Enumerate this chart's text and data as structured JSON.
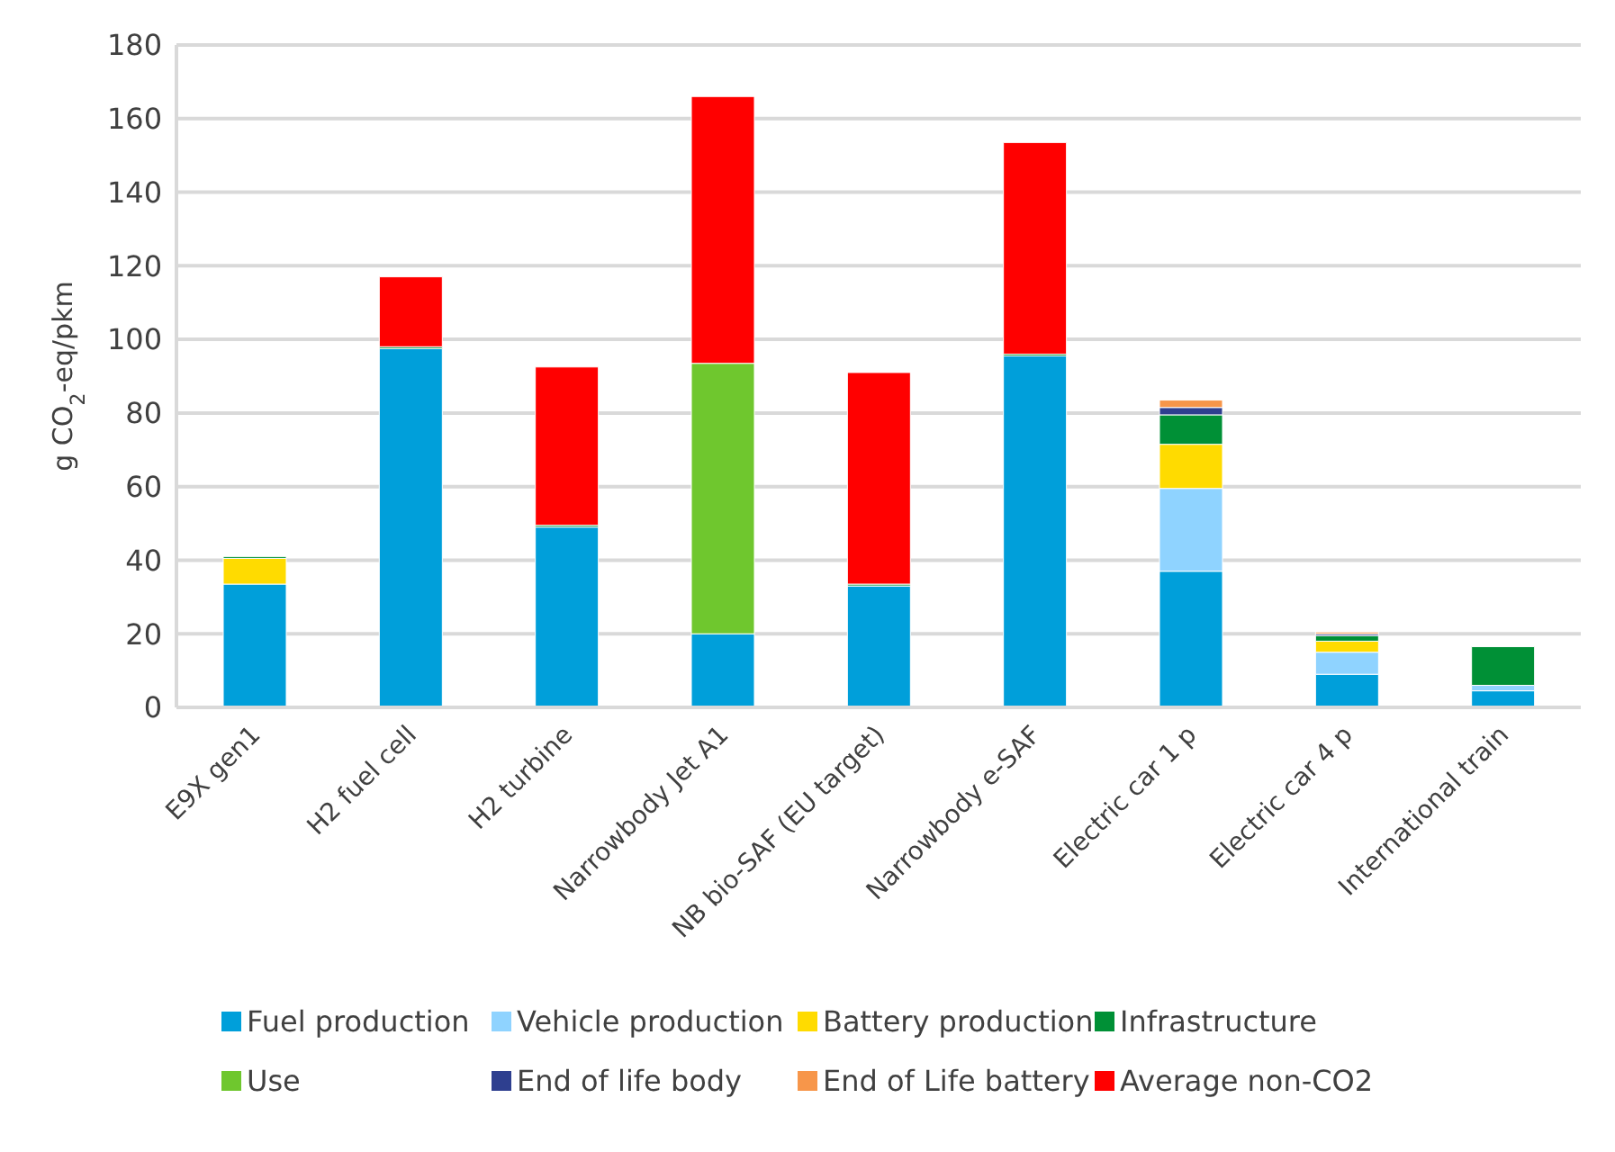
{
  "chart_data": {
    "type": "bar",
    "stacked": true,
    "ylabel": "g CO$_{2}$-eq/pkm",
    "categories": [
      "E9X gen1",
      "H2 fuel cell",
      "H2 turbine",
      "Narrowbody Jet A1",
      "NB bio-SAF (EU target)",
      "Narrowbody e-SAF",
      "Electric car 1 p",
      "Electric car 4 p",
      "International train"
    ],
    "series": [
      {
        "name": "Fuel production",
        "color": "#009fda",
        "values": [
          33.5,
          97.5,
          49,
          20,
          33,
          95.5,
          37,
          9,
          4.5
        ]
      },
      {
        "name": "Vehicle production",
        "color": "#8fd3ff",
        "values": [
          0,
          0,
          0,
          0,
          0,
          0,
          22.5,
          6,
          1.5
        ]
      },
      {
        "name": "Battery production",
        "color": "#ffdb00",
        "values": [
          7,
          0,
          0,
          0,
          0,
          0,
          12,
          3,
          0
        ]
      },
      {
        "name": "Infrastructure",
        "color": "#009036",
        "values": [
          0.5,
          0.5,
          0.5,
          0,
          0.5,
          0.5,
          8,
          1.5,
          10.5
        ]
      },
      {
        "name": "Use",
        "color": "#6fc72e",
        "values": [
          0,
          0,
          0,
          73.5,
          0,
          0,
          0,
          0,
          0
        ]
      },
      {
        "name": "End of life body",
        "color": "#2e3f8f",
        "values": [
          0,
          0,
          0,
          0,
          0,
          0,
          2,
          0.5,
          0
        ]
      },
      {
        "name": "End of Life battery",
        "color": "#f7964a",
        "values": [
          0,
          0,
          0,
          0,
          0,
          0,
          2,
          0.5,
          0
        ]
      },
      {
        "name": "Average non-CO2",
        "color": "#ff0000",
        "values": [
          0,
          19,
          43,
          72.5,
          57.5,
          57.5,
          0,
          0,
          0
        ]
      }
    ],
    "ylim": [
      0,
      180
    ],
    "yticks": [
      0,
      20,
      40,
      60,
      80,
      100,
      120,
      140,
      160,
      180
    ],
    "grid": "y",
    "legend": "bottom"
  }
}
